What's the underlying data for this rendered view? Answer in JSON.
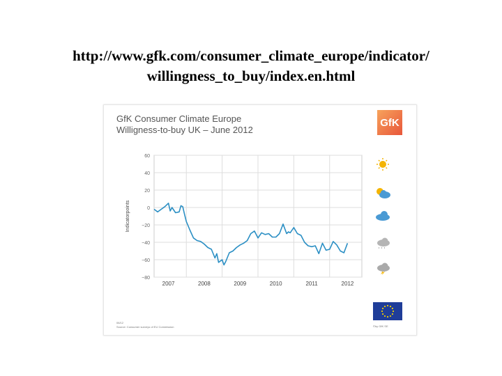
{
  "header": {
    "url_line1": "http://www.gfk.com/consumer_climate_europe/indicator/",
    "url_line2": "willingness_to_buy/index.en.html"
  },
  "logo": {
    "text": "GfK",
    "color": "#ee7f3f"
  },
  "footer": {
    "date": "06/12",
    "source": "Source: Consumer surveys of EU Commission",
    "copyright": "©by GfK SE"
  },
  "icons": [
    "sun-icon",
    "sun-behind-cloud-icon",
    "cloud-icon",
    "rain-cloud-icon",
    "storm-cloud-icon",
    "eu-flag-icon"
  ],
  "chart_data": {
    "type": "line",
    "title": "GfK Consumer Climate Europe",
    "subtitle": "Willigness-to-buy UK – June 2012",
    "ylabel": "Indicatorpoints",
    "xlabel": "",
    "ylim": [
      -80,
      60
    ],
    "yticks": [
      60,
      40,
      20,
      0,
      -20,
      -40,
      -60,
      -80
    ],
    "xlim": [
      2006.6,
      2012.4
    ],
    "xticks": [
      "2007",
      "2008",
      "2009",
      "2010",
      "2011",
      "2012"
    ],
    "xtick_values": [
      2007,
      2008,
      2009,
      2010,
      2011,
      2012
    ],
    "grid": true,
    "line_color": "#2b8fc4",
    "series": [
      {
        "x": [
          2006.6,
          2006.7,
          2006.8,
          2006.9,
          2007.0,
          2007.05,
          2007.1,
          2007.2,
          2007.3,
          2007.35,
          2007.4,
          2007.45,
          2007.5,
          2007.6,
          2007.7,
          2007.8,
          2007.9,
          2008.0,
          2008.1,
          2008.2,
          2008.3,
          2008.35,
          2008.4,
          2008.5,
          2008.55,
          2008.6,
          2008.7,
          2008.8,
          2008.9,
          2009.0,
          2009.1,
          2009.2,
          2009.3,
          2009.4,
          2009.5,
          2009.6,
          2009.7,
          2009.8,
          2009.9,
          2010.0,
          2010.1,
          2010.2,
          2010.3,
          2010.35,
          2010.4,
          2010.5,
          2010.6,
          2010.7,
          2010.8,
          2010.9,
          2011.0,
          2011.1,
          2011.2,
          2011.3,
          2011.4,
          2011.5,
          2011.6,
          2011.7,
          2011.8,
          2011.9,
          2012.0
        ],
        "y": [
          -2,
          -5,
          -2,
          1,
          5,
          -4,
          0,
          -6,
          -5,
          2,
          1,
          -8,
          -16,
          -26,
          -35,
          -38,
          -39,
          -42,
          -46,
          -48,
          -58,
          -53,
          -63,
          -60,
          -66,
          -62,
          -52,
          -50,
          -46,
          -43,
          -41,
          -38,
          -30,
          -27,
          -35,
          -29,
          -31,
          -30,
          -34,
          -34,
          -30,
          -19,
          -30,
          -28,
          -29,
          -23,
          -30,
          -32,
          -40,
          -44,
          -45,
          -44,
          -53,
          -41,
          -49,
          -48,
          -39,
          -43,
          -50,
          -52,
          -41
        ]
      }
    ]
  }
}
